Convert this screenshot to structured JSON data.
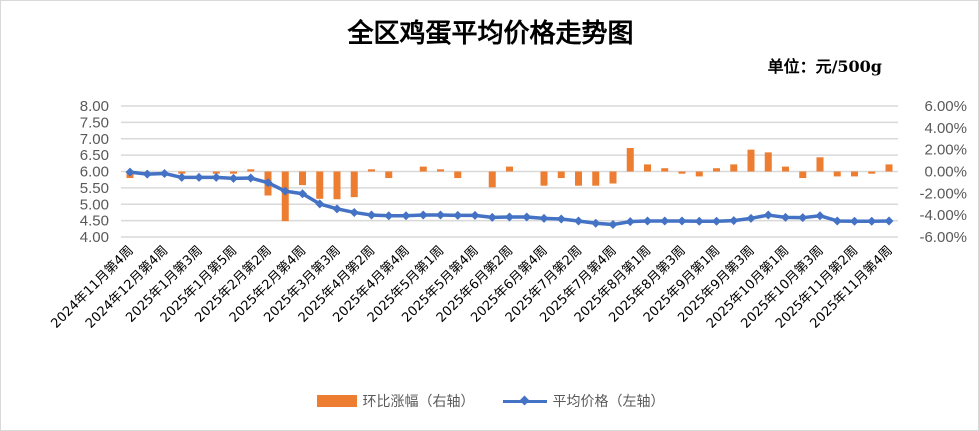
{
  "colors": {
    "bar": "#ED7D31",
    "line": "#4472C4",
    "grid": "#D9D9D9"
  },
  "chart_data": {
    "type": "bar+line",
    "title": "全区鸡蛋平均价格走势图",
    "unit_note": "单位：元/500g",
    "legend_position": "bottom",
    "grid": true,
    "categories": [
      "2024年11月第4周",
      "",
      "2024年12月第4周",
      "",
      "2025年1月第3周",
      "",
      "2025年1月第5周",
      "",
      "2025年2月第2周",
      "",
      "2025年2月第4周",
      "",
      "2025年3月第3周",
      "",
      "2025年4月第2周",
      "",
      "2025年4月第4周",
      "",
      "2025年5月第1周",
      "",
      "2025年5月第4周",
      "",
      "2025年6月第2周",
      "",
      "2025年6月第4周",
      "",
      "2025年7月第2周",
      "",
      "2025年7月第4周",
      "",
      "2025年8月第1周",
      "",
      "2025年8月第3周",
      "",
      "2025年9月第1周",
      "",
      "2025年9月第3周",
      "",
      "2025年10月第1周",
      "",
      "2025年10月第3周",
      "",
      "2025年11月第2周",
      "",
      "2025年11月第4周"
    ],
    "left_axis": {
      "ylim": [
        4.0,
        8.0
      ],
      "ticks": [
        "8.00",
        "7.50",
        "7.00",
        "6.50",
        "6.00",
        "5.50",
        "5.00",
        "4.50",
        "4.00"
      ]
    },
    "right_axis": {
      "ylim": [
        -6,
        6
      ],
      "ticks": [
        "6.00%",
        "4.00%",
        "2.00%",
        "0.00%",
        "-2.00%",
        "-4.00%",
        "-6.00%"
      ]
    },
    "series": [
      {
        "name": "环比涨幅（右轴）",
        "type": "bar",
        "axis": "right",
        "values": [
          -0.6,
          0,
          0,
          -0.2,
          0,
          -0.2,
          -0.2,
          0.2,
          -2.2,
          -4.55,
          -1.25,
          -2.5,
          -2.54,
          -2.35,
          0.2,
          -0.6,
          0,
          0.45,
          0.2,
          -0.6,
          0,
          -1.45,
          0.45,
          0,
          -1.3,
          -0.6,
          -1.3,
          -1.3,
          -1.1,
          2.15,
          0.65,
          0.3,
          -0.2,
          -0.45,
          0.3,
          0.65,
          2.0,
          1.75,
          0.45,
          -0.6,
          1.3,
          -0.45,
          -0.45,
          -0.2,
          0.65
        ]
      },
      {
        "name": "平均价格（左轴）",
        "type": "line",
        "axis": "left",
        "values": [
          5.98,
          5.92,
          5.94,
          5.82,
          5.82,
          5.82,
          5.79,
          5.8,
          5.66,
          5.4,
          5.32,
          5.01,
          4.86,
          4.75,
          4.67,
          4.65,
          4.65,
          4.67,
          4.67,
          4.66,
          4.66,
          4.6,
          4.61,
          4.61,
          4.57,
          4.55,
          4.49,
          4.42,
          4.38,
          4.47,
          4.49,
          4.49,
          4.49,
          4.48,
          4.48,
          4.5,
          4.57,
          4.67,
          4.6,
          4.59,
          4.65,
          4.49,
          4.48,
          4.48,
          4.49
        ]
      }
    ]
  }
}
